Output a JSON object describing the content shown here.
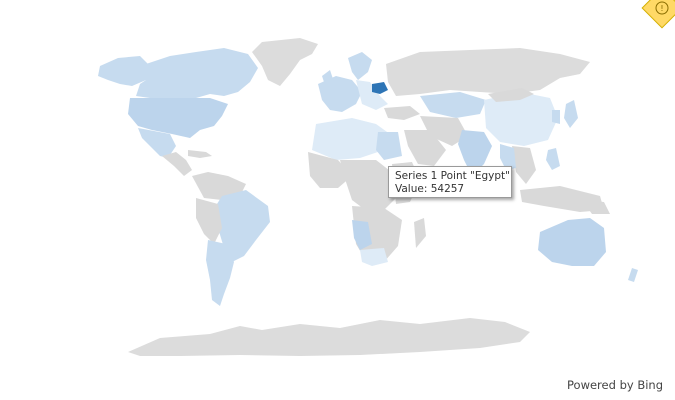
{
  "map": {
    "colors": {
      "ocean": "#ffffff",
      "no_data": "#d9d9d9",
      "light": "#deebf7",
      "medium": "#c6dbef",
      "medium_dark": "#bcd4ec",
      "highlight": "#2e75b6",
      "border": "#ffffff"
    },
    "highlighted_country": "Belarus"
  },
  "tooltip": {
    "title": "Series 1 Point \"Egypt\"",
    "value_line": "Value: 54257"
  },
  "attribution": "Powered by Bing",
  "warning_badge": {
    "icon": "warning-icon",
    "color": "#ffd966",
    "glyph": "!"
  }
}
